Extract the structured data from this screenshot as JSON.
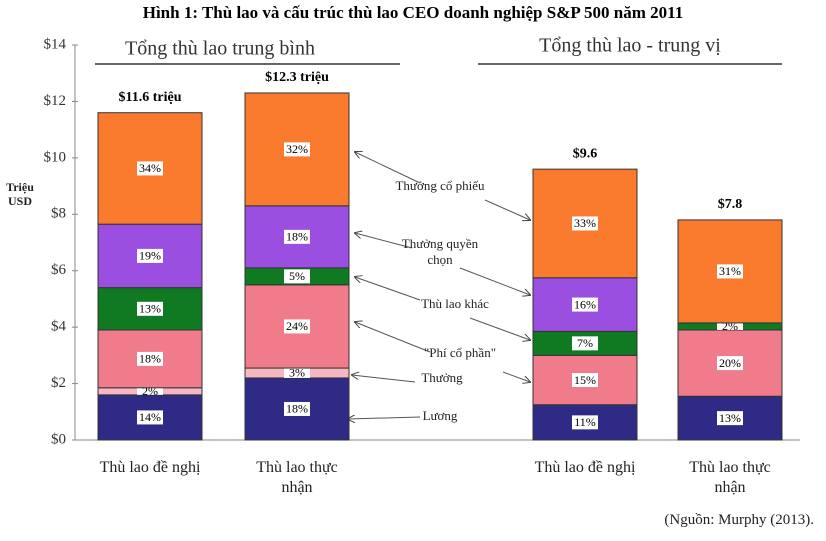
{
  "chart_data": {
    "type": "stacked_bar",
    "title": "Hình 1: Thù lao và cấu trúc thù lao CEO doanh nghiệp S&P 500 năm 2011",
    "group_titles": [
      "Tổng thù lao trung bình",
      "Tổng thù lao - trung vị"
    ],
    "y_label": "Triệu USD",
    "source": "(Nguồn: Murphy (2013).",
    "categories": [
      "Thù lao đề nghị",
      "Thù lao thực nhận",
      "Thù lao đề nghị",
      "Thù lao thực nhận"
    ],
    "total_labels": [
      "$11.6 triệu",
      "$12.3 triệu",
      "$9.6",
      "$7.8"
    ],
    "series": [
      {
        "name": "Lương",
        "color": "#2e2a86",
        "values": [
          1.6,
          2.2,
          1.25,
          1.55
        ],
        "percent_labels": [
          "14%",
          "18%",
          "11%",
          "13%"
        ]
      },
      {
        "name": "Thưởng",
        "color": "#f6b8c0",
        "values": [
          0.25,
          0.35,
          null,
          null
        ],
        "percent_labels": [
          "2%",
          "3%",
          null,
          null
        ]
      },
      {
        "name": "\"Phí cổ phần\"",
        "color": "#ef7b8b",
        "values": [
          2.05,
          2.95,
          1.75,
          2.35
        ],
        "percent_labels": [
          "18%",
          "24%",
          "15%",
          "20%"
        ]
      },
      {
        "name": "Thù lao khác",
        "color": "#0f7a22",
        "values": [
          1.5,
          0.6,
          0.85,
          0.25
        ],
        "percent_labels": [
          "13%",
          "5%",
          "7%",
          "2%"
        ]
      },
      {
        "name": "Thưởng quyền chọn",
        "color": "#9a4fe0",
        "values": [
          2.25,
          2.2,
          1.9,
          null
        ],
        "percent_labels": [
          "19%",
          "18%",
          "16%",
          null
        ]
      },
      {
        "name": "Thưởng cổ phiếu",
        "color": "#fb7b2e",
        "values": [
          3.95,
          4.0,
          3.85,
          3.65
        ],
        "percent_labels": [
          "34%",
          "32%",
          "33%",
          "31%"
        ]
      }
    ],
    "ylim": [
      0,
      14
    ],
    "yticks": [
      {
        "value": 0,
        "label": "$0"
      },
      {
        "value": 2,
        "label": "$2"
      },
      {
        "value": 4,
        "label": "$4"
      },
      {
        "value": 6,
        "label": "$6"
      },
      {
        "value": 8,
        "label": "$8"
      },
      {
        "value": 10,
        "label": "$10"
      },
      {
        "value": 12,
        "label": "$12"
      },
      {
        "value": 14,
        "label": "$14"
      }
    ]
  }
}
